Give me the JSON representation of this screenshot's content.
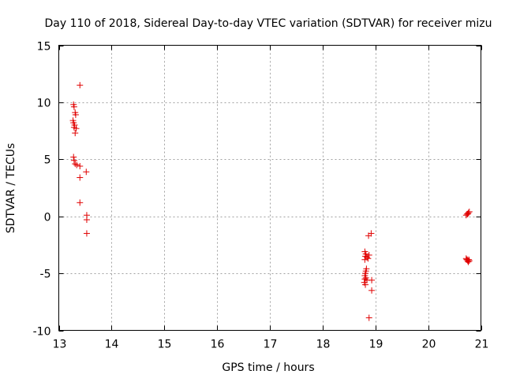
{
  "chart_data": {
    "type": "scatter",
    "title": "Day 110 of 2018, Sidereal Day-to-day VTEC variation (SDTVAR) for receiver mizu",
    "xlabel": "GPS time / hours",
    "ylabel": "SDTVAR / TECUs",
    "xlim": [
      13,
      21
    ],
    "ylim": [
      -10,
      15
    ],
    "xticks": [
      13,
      14,
      15,
      16,
      17,
      18,
      19,
      20,
      21
    ],
    "yticks": [
      -10,
      -5,
      0,
      5,
      10,
      15
    ],
    "xtick_labels": [
      "13",
      "14",
      "15",
      "16",
      "17",
      "18",
      "19",
      "20",
      "21"
    ],
    "ytick_labels": [
      "-10",
      "-5",
      "0",
      "5",
      "10",
      "15"
    ],
    "grid": true,
    "marker": "+",
    "marker_color": "#e00000",
    "series": [
      {
        "name": "SDTVAR",
        "points": [
          [
            13.4,
            11.5
          ],
          [
            13.28,
            9.8
          ],
          [
            13.29,
            9.6
          ],
          [
            13.31,
            9.1
          ],
          [
            13.32,
            8.9
          ],
          [
            13.27,
            8.4
          ],
          [
            13.28,
            8.2
          ],
          [
            13.3,
            8.0
          ],
          [
            13.29,
            7.8
          ],
          [
            13.33,
            7.7
          ],
          [
            13.31,
            7.3
          ],
          [
            13.28,
            5.2
          ],
          [
            13.29,
            4.9
          ],
          [
            13.31,
            4.6
          ],
          [
            13.34,
            4.5
          ],
          [
            13.4,
            4.4
          ],
          [
            13.52,
            3.9
          ],
          [
            13.4,
            3.4
          ],
          [
            13.4,
            1.2
          ],
          [
            13.53,
            0.1
          ],
          [
            13.53,
            -0.3
          ],
          [
            13.53,
            -1.5
          ],
          [
            18.92,
            -1.5
          ],
          [
            18.87,
            -1.7
          ],
          [
            18.8,
            -3.1
          ],
          [
            18.82,
            -3.3
          ],
          [
            18.81,
            -3.5
          ],
          [
            18.84,
            -3.6
          ],
          [
            18.88,
            -3.4
          ],
          [
            18.86,
            -3.7
          ],
          [
            18.8,
            -3.8
          ],
          [
            18.83,
            -4.6
          ],
          [
            18.82,
            -4.8
          ],
          [
            18.81,
            -5.0
          ],
          [
            18.8,
            -5.2
          ],
          [
            18.82,
            -5.4
          ],
          [
            18.8,
            -5.5
          ],
          [
            18.84,
            -5.6
          ],
          [
            18.93,
            -5.6
          ],
          [
            18.79,
            -5.8
          ],
          [
            18.81,
            -6.0
          ],
          [
            18.93,
            -6.5
          ],
          [
            18.88,
            -8.9
          ],
          [
            20.72,
            0.1
          ],
          [
            20.74,
            0.2
          ],
          [
            20.76,
            0.3
          ],
          [
            20.78,
            0.4
          ],
          [
            20.75,
            0.2
          ],
          [
            20.72,
            -3.7
          ],
          [
            20.74,
            -3.8
          ],
          [
            20.75,
            -3.9
          ],
          [
            20.77,
            -3.8
          ],
          [
            20.78,
            -3.9
          ],
          [
            20.76,
            -4.0
          ],
          [
            20.73,
            -3.8
          ]
        ]
      }
    ]
  }
}
